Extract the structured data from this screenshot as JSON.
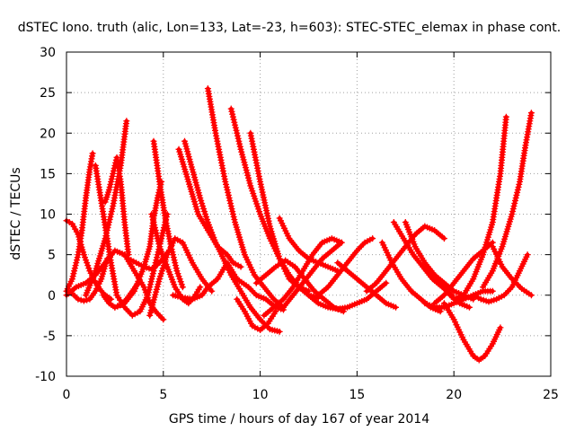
{
  "chart_data": {
    "type": "scatter",
    "title": "dSTEC Iono. truth (alic, Lon=133, Lat=-23, h=603): STEC-STEC_elemax in phase cont.",
    "xlabel": "GPS time / hours of day 167 of year 2014",
    "ylabel": "dSTEC  / TECUs",
    "xlim": [
      0,
      25
    ],
    "ylim": [
      -10,
      30
    ],
    "xticks": [
      0,
      5,
      10,
      15,
      20,
      25
    ],
    "yticks": [
      -10,
      -5,
      0,
      5,
      10,
      15,
      20,
      25,
      30
    ],
    "grid": true,
    "marker": "plus",
    "color": "#ff0000",
    "series": [
      {
        "x": [
          0.0,
          0.3,
          0.6,
          0.8,
          1.0,
          1.2,
          1.35
        ],
        "y": [
          0.5,
          2.0,
          5.0,
          8.0,
          12.0,
          15.5,
          17.5
        ]
      },
      {
        "x": [
          0.0,
          0.3,
          0.6,
          0.9,
          1.2,
          1.5,
          1.8,
          2.0,
          2.3
        ],
        "y": [
          9.2,
          8.8,
          7.5,
          5.0,
          3.0,
          1.5,
          0.5,
          0.0,
          -0.5
        ]
      },
      {
        "x": [
          0.0,
          0.5,
          1.0,
          1.5,
          2.0,
          2.5,
          3.0,
          3.5,
          4.0,
          4.3,
          4.6,
          5.0
        ],
        "y": [
          0.0,
          1.0,
          1.5,
          2.5,
          4.0,
          5.5,
          5.0,
          3.0,
          1.0,
          -1.0,
          -2.0,
          -3.0
        ]
      },
      {
        "x": [
          0.3,
          0.6,
          0.9,
          1.2,
          1.5,
          1.8,
          2.1
        ],
        "y": [
          0.2,
          -0.5,
          -0.7,
          -0.5,
          0.5,
          2.0,
          4.5
        ]
      },
      {
        "x": [
          1.5,
          1.9,
          2.3,
          2.6,
          3.0,
          3.4,
          3.8,
          4.2,
          4.5,
          4.9,
          5.2
        ],
        "y": [
          16.0,
          10.0,
          4.0,
          0.0,
          -1.5,
          -2.5,
          -2.0,
          0.0,
          3.0,
          7.0,
          10.0
        ]
      },
      {
        "x": [
          1.0,
          1.5,
          2.0,
          2.4,
          2.8,
          3.1
        ],
        "y": [
          0.0,
          3.0,
          7.0,
          11.0,
          16.0,
          21.5
        ]
      },
      {
        "x": [
          1.9,
          2.2,
          2.5,
          2.8,
          3.1,
          3.4,
          3.7
        ],
        "y": [
          0.0,
          -1.0,
          -1.5,
          -1.2,
          -0.5,
          0.5,
          1.5
        ]
      },
      {
        "x": [
          2.0,
          2.2,
          2.4,
          2.6,
          2.8,
          3.0,
          3.2
        ],
        "y": [
          11.5,
          13.0,
          15.0,
          17.0,
          14.0,
          9.0,
          5.0
        ]
      },
      {
        "x": [
          2.5,
          3.0,
          3.5,
          4.0,
          4.3,
          4.5,
          4.7,
          4.9
        ],
        "y": [
          -1.5,
          -1.0,
          0.5,
          3.5,
          6.0,
          9.5,
          12.0,
          14.0
        ]
      },
      {
        "x": [
          3.2,
          3.6,
          4.0,
          4.4,
          4.8,
          5.3
        ],
        "y": [
          4.5,
          4.0,
          3.5,
          3.2,
          4.0,
          5.5
        ]
      },
      {
        "x": [
          4.3,
          4.8,
          5.2,
          5.6,
          6.0,
          6.5,
          7.0,
          7.5
        ],
        "y": [
          -2.5,
          2.0,
          5.0,
          7.0,
          6.5,
          4.0,
          2.0,
          0.5
        ]
      },
      {
        "x": [
          4.4,
          4.8,
          5.2,
          5.6,
          6.0,
          6.3,
          6.6,
          6.9
        ],
        "y": [
          10.0,
          6.0,
          3.5,
          1.0,
          -0.5,
          -1.0,
          -0.2,
          1.0
        ]
      },
      {
        "x": [
          4.5,
          4.8,
          5.1,
          5.4,
          5.7,
          6.0
        ],
        "y": [
          19.0,
          14.0,
          9.5,
          6.0,
          3.0,
          1.0
        ]
      },
      {
        "x": [
          5.5,
          6.0,
          6.5,
          7.0,
          7.3,
          7.8,
          8.3,
          8.8,
          9.4,
          9.8,
          10.3,
          10.8,
          11.2
        ],
        "y": [
          0.0,
          -0.3,
          -0.5,
          0.0,
          1.0,
          2.0,
          4.0,
          2.0,
          1.0,
          0.0,
          -0.5,
          -1.5,
          -1.8
        ]
      },
      {
        "x": [
          5.8,
          6.3,
          6.8,
          7.3,
          7.8,
          8.3,
          8.6,
          9.0
        ],
        "y": [
          18.0,
          14.0,
          10.0,
          8.0,
          6.0,
          5.0,
          4.0,
          3.5
        ]
      },
      {
        "x": [
          6.1,
          6.5,
          6.9,
          7.3,
          7.7,
          8.1,
          8.5,
          9.0,
          9.5,
          10.0,
          10.5,
          11.0
        ],
        "y": [
          19.0,
          15.5,
          12.0,
          9.0,
          6.5,
          4.5,
          2.5,
          0.5,
          -1.5,
          -3.0,
          -4.2,
          -4.5
        ]
      },
      {
        "x": [
          7.3,
          7.7,
          8.2,
          8.7,
          9.2,
          9.7,
          10.2,
          10.7,
          11.2
        ],
        "y": [
          25.5,
          20.0,
          14.0,
          9.0,
          5.0,
          2.5,
          1.0,
          -0.5,
          -1.5
        ]
      },
      {
        "x": [
          8.5,
          9.0,
          9.5,
          10.0,
          10.5,
          11.0,
          11.5,
          12.0,
          12.5,
          13.0
        ],
        "y": [
          23.0,
          18.0,
          13.5,
          10.0,
          7.0,
          4.5,
          2.5,
          1.0,
          0.0,
          -0.3
        ]
      },
      {
        "x": [
          9.5,
          10.0,
          10.5,
          11.0,
          11.5,
          12.0,
          12.5
        ],
        "y": [
          20.0,
          14.0,
          8.5,
          4.5,
          2.0,
          1.0,
          0.5
        ]
      },
      {
        "x": [
          8.8,
          9.2,
          9.6,
          10.0,
          10.4,
          10.8
        ],
        "y": [
          -0.5,
          -2.0,
          -3.8,
          -4.3,
          -3.5,
          -2.0
        ]
      },
      {
        "x": [
          9.8,
          10.3,
          10.8,
          11.3,
          11.8,
          12.3,
          12.8,
          13.3,
          13.8,
          14.3
        ],
        "y": [
          1.5,
          2.5,
          3.5,
          4.3,
          3.5,
          2.0,
          0.5,
          -0.5,
          -1.5,
          -2.0
        ]
      },
      {
        "x": [
          11.0,
          11.5,
          12.0,
          12.5,
          13.0,
          13.5,
          14.0
        ],
        "y": [
          9.5,
          7.0,
          5.5,
          4.5,
          4.0,
          3.5,
          3.0
        ]
      },
      {
        "x": [
          10.2,
          10.7,
          11.2,
          11.7,
          12.2,
          12.7,
          13.2,
          13.7,
          14.2
        ],
        "y": [
          -2.5,
          -1.5,
          -0.5,
          1.0,
          3.0,
          5.0,
          6.5,
          7.0,
          6.5
        ]
      },
      {
        "x": [
          11.2,
          11.7,
          12.2,
          12.7,
          13.2,
          13.7,
          14.2
        ],
        "y": [
          -1.5,
          0.0,
          1.5,
          3.0,
          4.5,
          5.5,
          6.5
        ]
      },
      {
        "x": [
          12.5,
          13.0,
          13.5,
          14.0,
          14.5,
          15.0,
          15.5,
          16.0,
          16.5
        ],
        "y": [
          0.0,
          -1.0,
          -1.5,
          -1.7,
          -1.5,
          -1.0,
          -0.5,
          0.5,
          1.5
        ]
      },
      {
        "x": [
          13.0,
          13.5,
          14.0,
          14.5,
          15.0,
          15.4,
          15.8
        ],
        "y": [
          0.0,
          1.0,
          2.5,
          4.0,
          5.5,
          6.5,
          7.0
        ]
      },
      {
        "x": [
          14.0,
          14.5,
          15.0,
          15.5,
          16.0,
          16.5,
          17.0
        ],
        "y": [
          4.0,
          3.0,
          2.0,
          1.0,
          0.0,
          -1.0,
          -1.5
        ]
      },
      {
        "x": [
          16.3,
          16.8,
          17.3,
          17.8,
          18.3,
          18.8,
          19.3
        ],
        "y": [
          6.5,
          4.0,
          2.0,
          0.5,
          -0.5,
          -1.5,
          -2.0
        ]
      },
      {
        "x": [
          15.5,
          16.0,
          16.5,
          17.0,
          17.5,
          18.0,
          18.5,
          19.0,
          19.5
        ],
        "y": [
          0.5,
          1.5,
          3.0,
          4.5,
          6.0,
          7.5,
          8.5,
          8.0,
          7.0
        ]
      },
      {
        "x": [
          16.9,
          17.4,
          17.9,
          18.4,
          18.9,
          19.4,
          19.9
        ],
        "y": [
          9.0,
          7.0,
          5.0,
          3.5,
          2.0,
          1.0,
          0.0
        ]
      },
      {
        "x": [
          17.5,
          18.0,
          18.5,
          19.0,
          19.5,
          20.0,
          20.5,
          21.0
        ],
        "y": [
          9.0,
          6.0,
          4.0,
          2.5,
          1.5,
          0.5,
          0.0,
          -0.5
        ]
      },
      {
        "x": [
          18.5,
          19.0,
          19.5,
          20.0,
          20.5,
          21.0,
          21.5,
          22.0
        ],
        "y": [
          -1.0,
          -1.5,
          -1.5,
          -1.0,
          -0.5,
          0.0,
          0.5,
          0.5
        ]
      },
      {
        "x": [
          19.5,
          20.0,
          20.5,
          21.0,
          21.3,
          21.6,
          22.0,
          22.4
        ],
        "y": [
          -1.0,
          -3.0,
          -5.5,
          -7.5,
          -8.0,
          -7.5,
          -6.0,
          -4.0
        ]
      },
      {
        "x": [
          18.8,
          19.3,
          19.8,
          20.3,
          20.8
        ],
        "y": [
          3.0,
          1.5,
          0.0,
          -1.0,
          -1.5
        ]
      },
      {
        "x": [
          19.0,
          19.5,
          20.0,
          20.5,
          21.0,
          21.5,
          22.0
        ],
        "y": [
          -1.0,
          0.0,
          1.5,
          3.0,
          4.5,
          5.5,
          6.5
        ]
      },
      {
        "x": [
          20.0,
          20.5,
          21.0,
          21.5,
          22.0,
          22.4,
          22.7
        ],
        "y": [
          -0.5,
          0.0,
          2.0,
          5.0,
          9.0,
          15.0,
          22.0
        ]
      },
      {
        "x": [
          21.0,
          21.4,
          21.8,
          22.2,
          22.6,
          23.0,
          23.4,
          23.8
        ],
        "y": [
          0.0,
          -0.5,
          -0.8,
          -0.5,
          0.0,
          1.0,
          3.0,
          5.0
        ]
      },
      {
        "x": [
          21.5,
          22.0,
          22.5,
          23.0,
          23.4,
          23.7,
          24.0
        ],
        "y": [
          1.0,
          3.0,
          6.0,
          10.0,
          14.0,
          18.5,
          22.5
        ]
      },
      {
        "x": [
          22.0,
          22.5,
          23.0,
          23.5,
          24.0
        ],
        "y": [
          6.0,
          3.5,
          2.0,
          0.8,
          0.0
        ]
      }
    ]
  }
}
